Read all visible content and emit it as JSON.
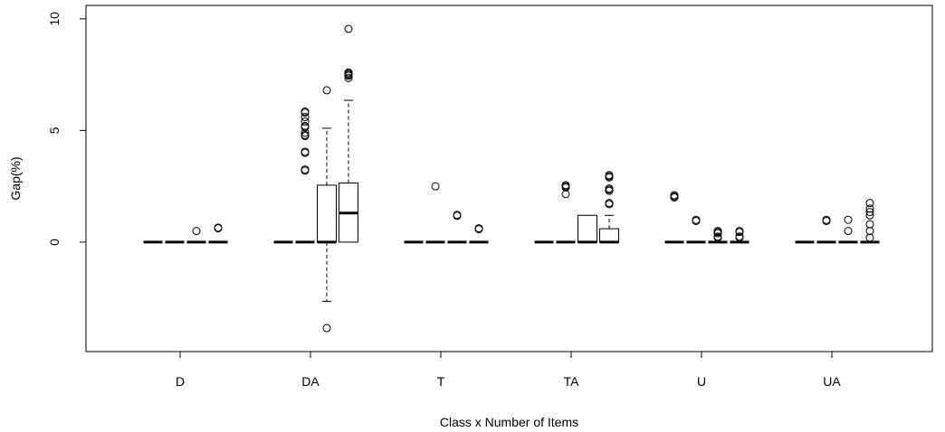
{
  "chart_data": {
    "type": "boxplot",
    "xlabel": "Class x Number of Items",
    "ylabel": "Gap(%)",
    "ylim": [
      -4.9,
      10.6
    ],
    "y_ticks": [
      0,
      5,
      10
    ],
    "y_tick_labels": [
      "0",
      "5",
      "10"
    ],
    "categories": [
      "D",
      "DA",
      "T",
      "TA",
      "U",
      "UA"
    ],
    "boxes_per_category": 4,
    "groups": [
      {
        "category": "D",
        "boxes": [
          {
            "q1": 0,
            "median": 0,
            "q3": 0,
            "whisker_low": 0,
            "whisker_high": 0,
            "outliers": []
          },
          {
            "q1": 0,
            "median": 0,
            "q3": 0,
            "whisker_low": 0,
            "whisker_high": 0,
            "outliers": []
          },
          {
            "q1": 0,
            "median": 0,
            "q3": 0,
            "whisker_low": 0,
            "whisker_high": 0,
            "outliers": [
              0.5
            ]
          },
          {
            "q1": 0,
            "median": 0,
            "q3": 0,
            "whisker_low": 0,
            "whisker_high": 0,
            "outliers": [
              0.62,
              0.65
            ]
          }
        ]
      },
      {
        "category": "DA",
        "boxes": [
          {
            "q1": 0,
            "median": 0,
            "q3": 0,
            "whisker_low": 0,
            "whisker_high": 0,
            "outliers": []
          },
          {
            "q1": 0,
            "median": 0,
            "q3": 0,
            "whisker_low": 0,
            "whisker_high": 0,
            "outliers": [
              3.2,
              3.25,
              4.0,
              4.05,
              4.75,
              4.8,
              4.9,
              5.15,
              5.2,
              5.4,
              5.6,
              5.8,
              5.85
            ]
          },
          {
            "q1": 0,
            "median": 0,
            "q3": 2.55,
            "whisker_low": -2.65,
            "whisker_high": 5.1,
            "outliers": [
              6.8,
              -3.85
            ]
          },
          {
            "q1": 0,
            "median": 1.3,
            "q3": 2.65,
            "whisker_low": 0,
            "whisker_high": 6.35,
            "outliers": [
              7.35,
              7.45,
              7.5,
              7.55,
              7.6,
              9.55
            ]
          }
        ]
      },
      {
        "category": "T",
        "boxes": [
          {
            "q1": 0,
            "median": 0,
            "q3": 0,
            "whisker_low": 0,
            "whisker_high": 0,
            "outliers": []
          },
          {
            "q1": 0,
            "median": 0,
            "q3": 0,
            "whisker_low": 0,
            "whisker_high": 0,
            "outliers": [
              2.5
            ]
          },
          {
            "q1": 0,
            "median": 0,
            "q3": 0,
            "whisker_low": 0,
            "whisker_high": 0,
            "outliers": [
              1.18,
              1.22
            ]
          },
          {
            "q1": 0,
            "median": 0,
            "q3": 0,
            "whisker_low": 0,
            "whisker_high": 0,
            "outliers": [
              0.58,
              0.62
            ]
          }
        ]
      },
      {
        "category": "TA",
        "boxes": [
          {
            "q1": 0,
            "median": 0,
            "q3": 0,
            "whisker_low": 0,
            "whisker_high": 0,
            "outliers": []
          },
          {
            "q1": 0,
            "median": 0,
            "q3": 0,
            "whisker_low": 0,
            "whisker_high": 0,
            "outliers": [
              2.15,
              2.45,
              2.5,
              2.55
            ]
          },
          {
            "q1": 0,
            "median": 0,
            "q3": 1.2,
            "whisker_low": 0,
            "whisker_high": 1.2,
            "outliers": []
          },
          {
            "q1": 0,
            "median": 0,
            "q3": 0.6,
            "whisker_low": 0,
            "whisker_high": 1.2,
            "outliers": [
              1.7,
              1.75,
              2.3,
              2.35,
              2.4,
              2.9,
              2.95,
              3.0
            ]
          }
        ]
      },
      {
        "category": "U",
        "boxes": [
          {
            "q1": 0,
            "median": 0,
            "q3": 0,
            "whisker_low": 0,
            "whisker_high": 0,
            "outliers": [
              2.0,
              2.05,
              2.1
            ]
          },
          {
            "q1": 0,
            "median": 0,
            "q3": 0,
            "whisker_low": 0,
            "whisker_high": 0,
            "outliers": [
              0.95,
              1.0
            ]
          },
          {
            "q1": 0,
            "median": 0,
            "q3": 0,
            "whisker_low": 0,
            "whisker_high": 0,
            "outliers": [
              0.2,
              0.25,
              0.4,
              0.45,
              0.5
            ]
          },
          {
            "q1": 0,
            "median": 0,
            "q3": 0,
            "whisker_low": 0,
            "whisker_high": 0,
            "outliers": [
              0.2,
              0.25,
              0.45,
              0.5
            ]
          }
        ]
      },
      {
        "category": "UA",
        "boxes": [
          {
            "q1": 0,
            "median": 0,
            "q3": 0,
            "whisker_low": 0,
            "whisker_high": 0,
            "outliers": []
          },
          {
            "q1": 0,
            "median": 0,
            "q3": 0,
            "whisker_low": 0,
            "whisker_high": 0,
            "outliers": [
              0.95,
              1.0
            ]
          },
          {
            "q1": 0,
            "median": 0,
            "q3": 0,
            "whisker_low": 0,
            "whisker_high": 0,
            "outliers": [
              0.5,
              1.0
            ]
          },
          {
            "q1": 0,
            "median": 0,
            "q3": 0,
            "whisker_low": 0,
            "whisker_high": 0,
            "outliers": [
              0.2,
              0.5,
              0.8,
              1.2,
              1.35,
              1.5,
              1.75
            ]
          }
        ]
      }
    ]
  }
}
